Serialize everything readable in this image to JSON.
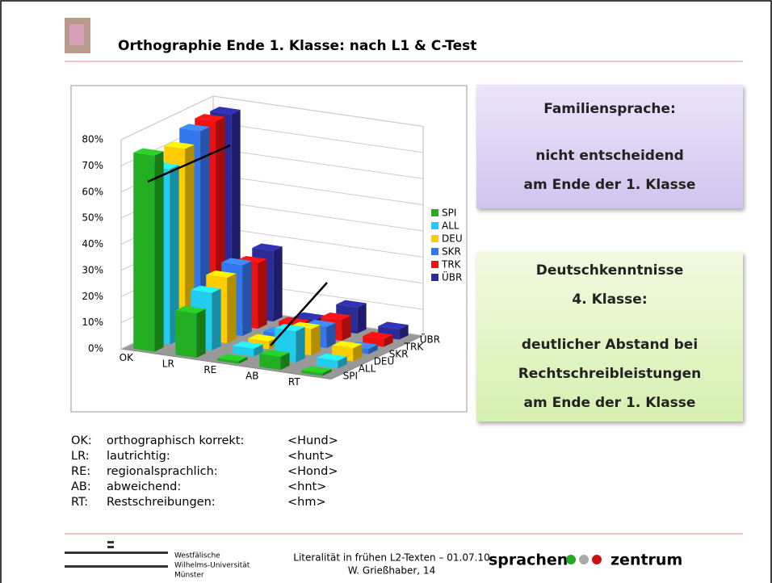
{
  "slide": {
    "title": "Orthographie Ende 1. Klasse: nach L1 & C-Test",
    "box1": [
      "Familiensprache:",
      "nicht entscheidend",
      "am Ende der 1. Klasse"
    ],
    "box2": [
      "Deutschkenntnisse",
      "4. Klasse:",
      "deutlicher Abstand bei",
      "Rechtschreibleistungen",
      "am Ende der 1. Klasse"
    ],
    "definitions": [
      [
        "OK:",
        "orthographisch korrekt:",
        "<Hund>"
      ],
      [
        "LR:",
        "lautrichtig:",
        "<hunt>"
      ],
      [
        "RE:",
        "regionalsprachlich:",
        "<Hond>"
      ],
      [
        "AB:",
        "abweichend:",
        "<hnt>"
      ],
      [
        "RT:",
        "Restschreibungen:",
        "<hm>"
      ]
    ],
    "footer": {
      "university": [
        "Westfälische",
        "Wilhelms-Universität",
        "Münster"
      ],
      "event": "Literalität in frühen L2-Texten – 01.07.10",
      "author": "W. Grießhaber, 14",
      "logo_left": "sprachen",
      "logo_right": "zentrum"
    }
  },
  "chart_data": {
    "type": "bar3d",
    "categories": [
      "OK",
      "LR",
      "RE",
      "AB",
      "RT"
    ],
    "series": [
      {
        "name": "SPI",
        "color": "#22b022",
        "values": [
          75,
          17,
          1,
          5,
          1
        ]
      },
      {
        "name": "ALL",
        "color": "#22ccee",
        "values": [
          67,
          22,
          3,
          12,
          3
        ]
      },
      {
        "name": "DEU",
        "color": "#ffcc00",
        "values": [
          72,
          25,
          3,
          10,
          5
        ]
      },
      {
        "name": "SKR",
        "color": "#3377ee",
        "values": [
          76,
          27,
          3,
          8,
          2
        ]
      },
      {
        "name": "TRK",
        "color": "#ee1111",
        "values": [
          77,
          25,
          4,
          8,
          3
        ]
      },
      {
        "name": "ÜBR",
        "color": "#2a2a99",
        "values": [
          77,
          27,
          3,
          10,
          4
        ]
      }
    ],
    "ylim": [
      0,
      80
    ],
    "yticks": [
      {
        "value": 0,
        "label": "0%"
      },
      {
        "value": 10,
        "label": "10%"
      },
      {
        "value": 20,
        "label": "20%"
      },
      {
        "value": 30,
        "label": "30%"
      },
      {
        "value": 40,
        "label": "40%"
      },
      {
        "value": 50,
        "label": "50%"
      },
      {
        "value": 60,
        "label": "60%"
      },
      {
        "value": 70,
        "label": "70%"
      },
      {
        "value": 80,
        "label": "80%"
      }
    ],
    "grid": true,
    "legend": "right"
  }
}
